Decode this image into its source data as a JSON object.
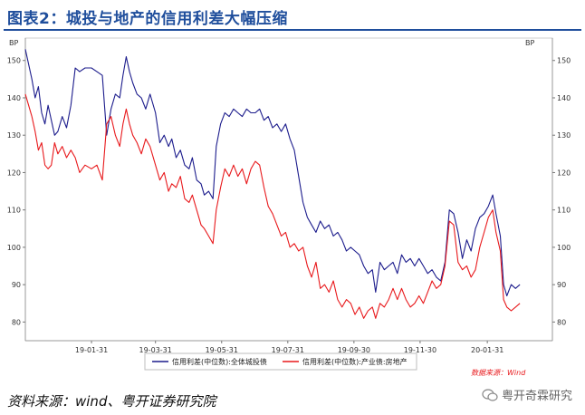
{
  "figure": {
    "title": "图表2：城投与地产的信用利差大幅压缩",
    "source": "资料来源：wind、粤开证券研究院",
    "watermark": "粤开奇霖研究",
    "data_source_note": "数据来源：Wind"
  },
  "colors": {
    "title": "#1f4e9c",
    "series_chengtou": "#1c1c8c",
    "series_realestate": "#e8191c"
  },
  "chart_data": {
    "type": "line",
    "left_axis_label": "BP",
    "right_axis_label": "BP",
    "ylim": [
      75,
      156
    ],
    "yticks": [
      80,
      90,
      100,
      110,
      120,
      130,
      140,
      150
    ],
    "x_range": [
      "2018-12-01",
      "2020-03-31"
    ],
    "xticks": [
      {
        "date": "2019-01-31",
        "label": "19-01-31"
      },
      {
        "date": "2019-03-31",
        "label": "19-03-31"
      },
      {
        "date": "2019-05-31",
        "label": "19-05-31"
      },
      {
        "date": "2019-07-31",
        "label": "19-07-31"
      },
      {
        "date": "2019-09-30",
        "label": "19-09-30"
      },
      {
        "date": "2019-11-30",
        "label": "19-11-30"
      },
      {
        "date": "2020-01-31",
        "label": "20-01-31"
      }
    ],
    "legend_position": "bottom",
    "series": [
      {
        "name": "信用利差(中位数):全体城投债",
        "color": "#1c1c8c",
        "points": [
          [
            "2018-12-01",
            153
          ],
          [
            "2018-12-04",
            149
          ],
          [
            "2018-12-07",
            145
          ],
          [
            "2018-12-10",
            140
          ],
          [
            "2018-12-13",
            143
          ],
          [
            "2018-12-16",
            136
          ],
          [
            "2018-12-19",
            133
          ],
          [
            "2018-12-22",
            138
          ],
          [
            "2018-12-25",
            134
          ],
          [
            "2018-12-28",
            130
          ],
          [
            "2018-12-31",
            131
          ],
          [
            "2019-01-04",
            135
          ],
          [
            "2019-01-08",
            132
          ],
          [
            "2019-01-12",
            138
          ],
          [
            "2019-01-16",
            148
          ],
          [
            "2019-01-20",
            147
          ],
          [
            "2019-01-25",
            148
          ],
          [
            "2019-01-31",
            148
          ],
          [
            "2019-02-05",
            147
          ],
          [
            "2019-02-10",
            146
          ],
          [
            "2019-02-14",
            130
          ],
          [
            "2019-02-18",
            137
          ],
          [
            "2019-02-22",
            141
          ],
          [
            "2019-02-26",
            140
          ],
          [
            "2019-03-01",
            146
          ],
          [
            "2019-03-04",
            151
          ],
          [
            "2019-03-07",
            147
          ],
          [
            "2019-03-10",
            144
          ],
          [
            "2019-03-14",
            141
          ],
          [
            "2019-03-18",
            140
          ],
          [
            "2019-03-22",
            137
          ],
          [
            "2019-03-26",
            141
          ],
          [
            "2019-03-31",
            136
          ],
          [
            "2019-04-04",
            128
          ],
          [
            "2019-04-08",
            130
          ],
          [
            "2019-04-12",
            127
          ],
          [
            "2019-04-15",
            129
          ],
          [
            "2019-04-19",
            124
          ],
          [
            "2019-04-23",
            126
          ],
          [
            "2019-04-27",
            122
          ],
          [
            "2019-05-01",
            121
          ],
          [
            "2019-05-04",
            124
          ],
          [
            "2019-05-08",
            118
          ],
          [
            "2019-05-12",
            117
          ],
          [
            "2019-05-15",
            114
          ],
          [
            "2019-05-19",
            115
          ],
          [
            "2019-05-23",
            113
          ],
          [
            "2019-05-26",
            127
          ],
          [
            "2019-05-30",
            133
          ],
          [
            "2019-06-03",
            136
          ],
          [
            "2019-06-07",
            135
          ],
          [
            "2019-06-11",
            137
          ],
          [
            "2019-06-15",
            136
          ],
          [
            "2019-06-19",
            135
          ],
          [
            "2019-06-23",
            137
          ],
          [
            "2019-06-27",
            136
          ],
          [
            "2019-07-01",
            136
          ],
          [
            "2019-07-05",
            137
          ],
          [
            "2019-07-09",
            134
          ],
          [
            "2019-07-13",
            135
          ],
          [
            "2019-07-17",
            132
          ],
          [
            "2019-07-21",
            133
          ],
          [
            "2019-07-25",
            131
          ],
          [
            "2019-07-29",
            133
          ],
          [
            "2019-08-02",
            129
          ],
          [
            "2019-08-06",
            126
          ],
          [
            "2019-08-10",
            119
          ],
          [
            "2019-08-14",
            112
          ],
          [
            "2019-08-18",
            108
          ],
          [
            "2019-08-22",
            106
          ],
          [
            "2019-08-26",
            104
          ],
          [
            "2019-08-30",
            107
          ],
          [
            "2019-09-03",
            105
          ],
          [
            "2019-09-07",
            106
          ],
          [
            "2019-09-11",
            103
          ],
          [
            "2019-09-15",
            104
          ],
          [
            "2019-09-19",
            102
          ],
          [
            "2019-09-23",
            99
          ],
          [
            "2019-09-27",
            100
          ],
          [
            "2019-10-01",
            99
          ],
          [
            "2019-10-05",
            98
          ],
          [
            "2019-10-09",
            95
          ],
          [
            "2019-10-13",
            93
          ],
          [
            "2019-10-17",
            94
          ],
          [
            "2019-10-20",
            88
          ],
          [
            "2019-10-24",
            96
          ],
          [
            "2019-10-28",
            94
          ],
          [
            "2019-11-01",
            95
          ],
          [
            "2019-11-05",
            96
          ],
          [
            "2019-11-09",
            93
          ],
          [
            "2019-11-13",
            98
          ],
          [
            "2019-11-17",
            96
          ],
          [
            "2019-11-21",
            97
          ],
          [
            "2019-11-25",
            95
          ],
          [
            "2019-11-29",
            97
          ],
          [
            "2019-12-03",
            95
          ],
          [
            "2019-12-07",
            93
          ],
          [
            "2019-12-11",
            94
          ],
          [
            "2019-12-15",
            92
          ],
          [
            "2019-12-19",
            91
          ],
          [
            "2019-12-23",
            96
          ],
          [
            "2019-12-27",
            110
          ],
          [
            "2019-12-31",
            109
          ],
          [
            "2020-01-04",
            104
          ],
          [
            "2020-01-08",
            97
          ],
          [
            "2020-01-12",
            102
          ],
          [
            "2020-01-16",
            99
          ],
          [
            "2020-01-20",
            105
          ],
          [
            "2020-01-24",
            108
          ],
          [
            "2020-01-28",
            109
          ],
          [
            "2020-02-01",
            111
          ],
          [
            "2020-02-05",
            114
          ],
          [
            "2020-02-08",
            109
          ],
          [
            "2020-02-12",
            103
          ],
          [
            "2020-02-15",
            90
          ],
          [
            "2020-02-18",
            87
          ],
          [
            "2020-02-22",
            90
          ],
          [
            "2020-02-26",
            89
          ],
          [
            "2020-03-01",
            90
          ]
        ]
      },
      {
        "name": "信用利差(中位数):产业债:房地产",
        "color": "#e8191c",
        "points": [
          [
            "2018-12-01",
            141
          ],
          [
            "2018-12-04",
            138
          ],
          [
            "2018-12-07",
            135
          ],
          [
            "2018-12-10",
            131
          ],
          [
            "2018-12-13",
            126
          ],
          [
            "2018-12-16",
            128
          ],
          [
            "2018-12-19",
            122
          ],
          [
            "2018-12-22",
            121
          ],
          [
            "2018-12-25",
            122
          ],
          [
            "2018-12-28",
            128
          ],
          [
            "2018-12-31",
            125
          ],
          [
            "2019-01-04",
            127
          ],
          [
            "2019-01-08",
            124
          ],
          [
            "2019-01-12",
            126
          ],
          [
            "2019-01-16",
            124
          ],
          [
            "2019-01-20",
            120
          ],
          [
            "2019-01-25",
            122
          ],
          [
            "2019-01-31",
            121
          ],
          [
            "2019-02-05",
            122
          ],
          [
            "2019-02-10",
            118
          ],
          [
            "2019-02-14",
            133
          ],
          [
            "2019-02-18",
            135
          ],
          [
            "2019-02-22",
            130
          ],
          [
            "2019-02-26",
            127
          ],
          [
            "2019-03-01",
            133
          ],
          [
            "2019-03-04",
            137
          ],
          [
            "2019-03-07",
            133
          ],
          [
            "2019-03-10",
            130
          ],
          [
            "2019-03-14",
            128
          ],
          [
            "2019-03-18",
            125
          ],
          [
            "2019-03-22",
            129
          ],
          [
            "2019-03-26",
            127
          ],
          [
            "2019-03-31",
            122
          ],
          [
            "2019-04-04",
            118
          ],
          [
            "2019-04-08",
            120
          ],
          [
            "2019-04-12",
            115
          ],
          [
            "2019-04-15",
            117
          ],
          [
            "2019-04-19",
            116
          ],
          [
            "2019-04-23",
            119
          ],
          [
            "2019-04-27",
            113
          ],
          [
            "2019-05-01",
            112
          ],
          [
            "2019-05-04",
            114
          ],
          [
            "2019-05-08",
            110
          ],
          [
            "2019-05-12",
            106
          ],
          [
            "2019-05-15",
            105
          ],
          [
            "2019-05-19",
            103
          ],
          [
            "2019-05-23",
            101
          ],
          [
            "2019-05-26",
            110
          ],
          [
            "2019-05-30",
            116
          ],
          [
            "2019-06-03",
            121
          ],
          [
            "2019-06-07",
            119
          ],
          [
            "2019-06-11",
            122
          ],
          [
            "2019-06-15",
            119
          ],
          [
            "2019-06-19",
            121
          ],
          [
            "2019-06-23",
            117
          ],
          [
            "2019-06-27",
            121
          ],
          [
            "2019-07-01",
            123
          ],
          [
            "2019-07-05",
            122
          ],
          [
            "2019-07-09",
            116
          ],
          [
            "2019-07-13",
            111
          ],
          [
            "2019-07-17",
            109
          ],
          [
            "2019-07-21",
            106
          ],
          [
            "2019-07-25",
            103
          ],
          [
            "2019-07-29",
            104
          ],
          [
            "2019-08-02",
            100
          ],
          [
            "2019-08-06",
            101
          ],
          [
            "2019-08-10",
            99
          ],
          [
            "2019-08-14",
            100
          ],
          [
            "2019-08-18",
            95
          ],
          [
            "2019-08-22",
            92
          ],
          [
            "2019-08-26",
            96
          ],
          [
            "2019-08-30",
            89
          ],
          [
            "2019-09-03",
            90
          ],
          [
            "2019-09-07",
            88
          ],
          [
            "2019-09-11",
            91
          ],
          [
            "2019-09-15",
            86
          ],
          [
            "2019-09-19",
            84
          ],
          [
            "2019-09-23",
            86
          ],
          [
            "2019-09-27",
            85
          ],
          [
            "2019-10-01",
            82
          ],
          [
            "2019-10-05",
            84
          ],
          [
            "2019-10-09",
            81
          ],
          [
            "2019-10-13",
            83
          ],
          [
            "2019-10-17",
            84
          ],
          [
            "2019-10-20",
            81
          ],
          [
            "2019-10-24",
            85
          ],
          [
            "2019-10-28",
            84
          ],
          [
            "2019-11-01",
            86
          ],
          [
            "2019-11-05",
            89
          ],
          [
            "2019-11-09",
            86
          ],
          [
            "2019-11-13",
            89
          ],
          [
            "2019-11-17",
            86
          ],
          [
            "2019-11-21",
            84
          ],
          [
            "2019-11-25",
            85
          ],
          [
            "2019-11-29",
            87
          ],
          [
            "2019-12-03",
            85
          ],
          [
            "2019-12-07",
            88
          ],
          [
            "2019-12-11",
            91
          ],
          [
            "2019-12-15",
            89
          ],
          [
            "2019-12-19",
            90
          ],
          [
            "2019-12-23",
            95
          ],
          [
            "2019-12-27",
            107
          ],
          [
            "2019-12-31",
            106
          ],
          [
            "2020-01-04",
            96
          ],
          [
            "2020-01-08",
            94
          ],
          [
            "2020-01-12",
            95
          ],
          [
            "2020-01-16",
            92
          ],
          [
            "2020-01-20",
            94
          ],
          [
            "2020-01-24",
            100
          ],
          [
            "2020-01-28",
            104
          ],
          [
            "2020-02-01",
            108
          ],
          [
            "2020-02-05",
            110
          ],
          [
            "2020-02-08",
            104
          ],
          [
            "2020-02-12",
            99
          ],
          [
            "2020-02-15",
            86
          ],
          [
            "2020-02-18",
            84
          ],
          [
            "2020-02-22",
            83
          ],
          [
            "2020-02-26",
            84
          ],
          [
            "2020-03-01",
            85
          ]
        ]
      }
    ]
  }
}
